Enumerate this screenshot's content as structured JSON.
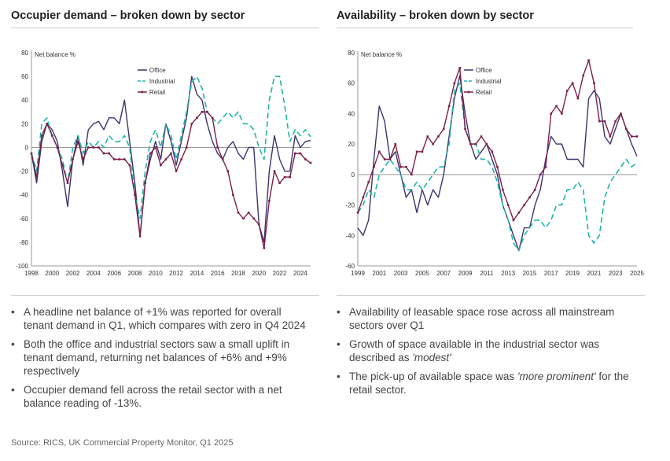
{
  "left_panel": {
    "title": "Occupier demand – broken down by sector",
    "bullets": [
      "A headline net balance of +1% was reported for overall tenant demand in Q1, which compares with zero in Q4 2024",
      "Both the office and industrial sectors saw a small uplift in tenant demand, returning net balances of +6% and +9% respectively",
      "Occupier demand fell across the retail sector with a net balance reading of -13%."
    ]
  },
  "right_panel": {
    "title": "Availability – broken down by sector",
    "bullets": [
      {
        "parts": [
          {
            "t": "Availability of leasable space rose across all mainstream sectors over Q1",
            "i": false
          }
        ]
      },
      {
        "parts": [
          {
            "t": "Growth of space available in the industrial sector was described as ",
            "i": false
          },
          {
            "t": "'modest'",
            "i": true
          }
        ]
      },
      {
        "parts": [
          {
            "t": "The pick-up of available space was ",
            "i": false
          },
          {
            "t": "'more prominent'",
            "i": true
          },
          {
            "t": " for the retail sector.",
            "i": false
          }
        ]
      }
    ]
  },
  "bullet_marker": "•",
  "source": "Source: RICS, UK Commercial Property Monitor, Q1 2025",
  "colors": {
    "office": "#3d3270",
    "industrial": "#1fb5a8",
    "retail": "#7a1f4a",
    "axis": "#999999"
  },
  "chart_data": [
    {
      "type": "line",
      "ylabel": "Net balance %",
      "ylim": [
        -100,
        80
      ],
      "yticks": [
        80,
        60,
        40,
        20,
        0,
        -20,
        -40,
        -60,
        -80,
        -100
      ],
      "xlim": [
        1998,
        2025
      ],
      "xticks": [
        "1998",
        "2000",
        "2002",
        "2004",
        "2006",
        "2008",
        "2010",
        "2012",
        "2014",
        "2016",
        "2018",
        "2020",
        "2022",
        "2024"
      ],
      "legend_position": "top-center",
      "series": [
        {
          "name": "Office",
          "style": "solid",
          "x": [
            1998,
            1998.5,
            1999,
            1999.5,
            2000,
            2000.5,
            2001,
            2001.5,
            2002,
            2002.5,
            2003,
            2003.5,
            2004,
            2004.5,
            2005,
            2005.5,
            2006,
            2006.5,
            2007,
            2007.5,
            2008,
            2008.5,
            2009,
            2009.5,
            2010,
            2010.5,
            2011,
            2011.5,
            2012,
            2012.5,
            2013,
            2013.5,
            2014,
            2014.5,
            2015,
            2015.5,
            2016,
            2016.5,
            2017,
            2017.5,
            2018,
            2018.5,
            2019,
            2019.5,
            2020,
            2020.5,
            2021,
            2021.5,
            2022,
            2022.5,
            2023,
            2023.5,
            2024,
            2024.5,
            2025
          ],
          "y": [
            -5,
            -30,
            5,
            20,
            15,
            5,
            -20,
            -50,
            -10,
            10,
            -15,
            15,
            20,
            22,
            15,
            25,
            25,
            20,
            40,
            5,
            -30,
            -75,
            -30,
            -10,
            5,
            -10,
            20,
            5,
            -15,
            5,
            25,
            60,
            45,
            40,
            20,
            5,
            -5,
            -10,
            0,
            5,
            -5,
            -10,
            0,
            0,
            -65,
            -80,
            -20,
            10,
            -10,
            -20,
            -20,
            10,
            0,
            5,
            6
          ]
        },
        {
          "name": "Industrial",
          "style": "dashed",
          "x": [
            1998,
            1998.5,
            1999,
            1999.5,
            2000,
            2000.5,
            2001,
            2001.5,
            2002,
            2002.5,
            2003,
            2003.5,
            2004,
            2004.5,
            2005,
            2005.5,
            2006,
            2006.5,
            2007,
            2007.5,
            2008,
            2008.5,
            2009,
            2009.5,
            2010,
            2010.5,
            2011,
            2011.5,
            2012,
            2012.5,
            2013,
            2013.5,
            2014,
            2014.5,
            2015,
            2015.5,
            2016,
            2016.5,
            2017,
            2017.5,
            2018,
            2018.5,
            2019,
            2019.5,
            2020,
            2020.5,
            2021,
            2021.5,
            2022,
            2022.5,
            2023,
            2023.5,
            2024,
            2024.5,
            2025
          ],
          "y": [
            -5,
            -20,
            20,
            25,
            10,
            0,
            -10,
            -30,
            0,
            10,
            -5,
            5,
            0,
            5,
            0,
            10,
            5,
            5,
            10,
            0,
            -40,
            -60,
            -20,
            5,
            15,
            0,
            20,
            10,
            -10,
            10,
            30,
            55,
            60,
            50,
            30,
            25,
            20,
            25,
            30,
            25,
            30,
            20,
            20,
            15,
            0,
            -10,
            40,
            60,
            60,
            35,
            5,
            15,
            10,
            15,
            9
          ]
        },
        {
          "name": "Retail",
          "style": "solid-markers",
          "x": [
            1998,
            1998.5,
            1999,
            1999.5,
            2000,
            2000.5,
            2001,
            2001.5,
            2002,
            2002.5,
            2003,
            2003.5,
            2004,
            2004.5,
            2005,
            2005.5,
            2006,
            2006.5,
            2007,
            2007.5,
            2008,
            2008.5,
            2009,
            2009.5,
            2010,
            2010.5,
            2011,
            2011.5,
            2012,
            2012.5,
            2013,
            2013.5,
            2014,
            2014.5,
            2015,
            2015.5,
            2016,
            2016.5,
            2017,
            2017.5,
            2018,
            2018.5,
            2019,
            2019.5,
            2020,
            2020.5,
            2021,
            2021.5,
            2022,
            2022.5,
            2023,
            2023.5,
            2024,
            2024.5,
            2025
          ],
          "y": [
            -5,
            -25,
            10,
            20,
            10,
            0,
            -15,
            -30,
            -10,
            5,
            -10,
            0,
            0,
            0,
            -5,
            -5,
            -10,
            -10,
            -10,
            -15,
            -40,
            -75,
            -30,
            -5,
            0,
            -15,
            -10,
            -5,
            -20,
            -10,
            0,
            20,
            25,
            30,
            30,
            25,
            0,
            -10,
            -20,
            -40,
            -55,
            -60,
            -55,
            -60,
            -65,
            -85,
            -45,
            -20,
            -30,
            -25,
            -25,
            -5,
            -5,
            -10,
            -13
          ]
        }
      ]
    },
    {
      "type": "line",
      "ylabel": "Net balance %",
      "ylim": [
        -60,
        80
      ],
      "yticks": [
        80,
        60,
        40,
        20,
        0,
        -20,
        -40,
        -60
      ],
      "xlim": [
        1999,
        2025
      ],
      "xticks": [
        "1999",
        "2001",
        "2003",
        "2005",
        "2007",
        "2009",
        "2011",
        "2013",
        "2015",
        "2017",
        "2019",
        "2021",
        "2023",
        "2025"
      ],
      "legend_position": "top-center",
      "series": [
        {
          "name": "Office",
          "style": "solid",
          "x": [
            1999,
            1999.5,
            2000,
            2000.5,
            2001,
            2001.5,
            2002,
            2002.5,
            2003,
            2003.5,
            2004,
            2004.5,
            2005,
            2005.5,
            2006,
            2006.5,
            2007,
            2007.5,
            2008,
            2008.5,
            2009,
            2009.5,
            2010,
            2010.5,
            2011,
            2011.5,
            2012,
            2012.5,
            2013,
            2013.5,
            2014,
            2014.5,
            2015,
            2015.5,
            2016,
            2016.5,
            2017,
            2017.5,
            2018,
            2018.5,
            2019,
            2019.5,
            2020,
            2020.5,
            2021,
            2021.5,
            2022,
            2022.5,
            2023,
            2023.5,
            2024,
            2024.5,
            2025
          ],
          "y": [
            -35,
            -40,
            -30,
            10,
            45,
            35,
            10,
            15,
            0,
            -15,
            -10,
            -25,
            -10,
            -20,
            -10,
            -15,
            0,
            25,
            50,
            65,
            40,
            20,
            10,
            15,
            20,
            10,
            0,
            -20,
            -30,
            -40,
            -50,
            -35,
            -35,
            -20,
            -10,
            10,
            25,
            20,
            20,
            10,
            10,
            10,
            5,
            50,
            55,
            50,
            25,
            20,
            30,
            40,
            30,
            20,
            12
          ]
        },
        {
          "name": "Industrial",
          "style": "dashed",
          "x": [
            1999,
            1999.5,
            2000,
            2000.5,
            2001,
            2001.5,
            2002,
            2002.5,
            2003,
            2003.5,
            2004,
            2004.5,
            2005,
            2005.5,
            2006,
            2006.5,
            2007,
            2007.5,
            2008,
            2008.5,
            2009,
            2009.5,
            2010,
            2010.5,
            2011,
            2011.5,
            2012,
            2012.5,
            2013,
            2013.5,
            2014,
            2014.5,
            2015,
            2015.5,
            2016,
            2016.5,
            2017,
            2017.5,
            2018,
            2018.5,
            2019,
            2019.5,
            2020,
            2020.5,
            2021,
            2021.5,
            2022,
            2022.5,
            2023,
            2023.5,
            2024,
            2024.5,
            2025
          ],
          "y": [
            -25,
            -20,
            -10,
            -15,
            0,
            5,
            10,
            5,
            0,
            -10,
            -10,
            -5,
            -10,
            -5,
            0,
            5,
            5,
            20,
            55,
            60,
            30,
            20,
            20,
            10,
            10,
            5,
            -5,
            -20,
            -30,
            -45,
            -50,
            -40,
            -35,
            -30,
            -30,
            -35,
            -30,
            -20,
            -20,
            -10,
            -10,
            -5,
            -10,
            -40,
            -45,
            -40,
            -15,
            -5,
            0,
            5,
            10,
            5,
            8
          ]
        },
        {
          "name": "Retail",
          "style": "solid-markers",
          "x": [
            1999,
            1999.5,
            2000,
            2000.5,
            2001,
            2001.5,
            2002,
            2002.5,
            2003,
            2003.5,
            2004,
            2004.5,
            2005,
            2005.5,
            2006,
            2006.5,
            2007,
            2007.5,
            2008,
            2008.5,
            2009,
            2009.5,
            2010,
            2010.5,
            2011,
            2011.5,
            2012,
            2012.5,
            2013,
            2013.5,
            2014,
            2014.5,
            2015,
            2015.5,
            2016,
            2016.5,
            2017,
            2017.5,
            2018,
            2018.5,
            2019,
            2019.5,
            2020,
            2020.5,
            2021,
            2021.5,
            2022,
            2022.5,
            2023,
            2023.5,
            2024,
            2024.5,
            2025
          ],
          "y": [
            -25,
            -15,
            -5,
            5,
            15,
            10,
            10,
            20,
            5,
            5,
            0,
            15,
            15,
            25,
            20,
            25,
            30,
            45,
            60,
            70,
            30,
            20,
            20,
            25,
            20,
            15,
            5,
            -10,
            -20,
            -30,
            -25,
            -20,
            -15,
            -10,
            0,
            5,
            40,
            45,
            40,
            55,
            60,
            50,
            65,
            75,
            60,
            35,
            35,
            25,
            35,
            40,
            30,
            25,
            25
          ]
        }
      ]
    }
  ]
}
